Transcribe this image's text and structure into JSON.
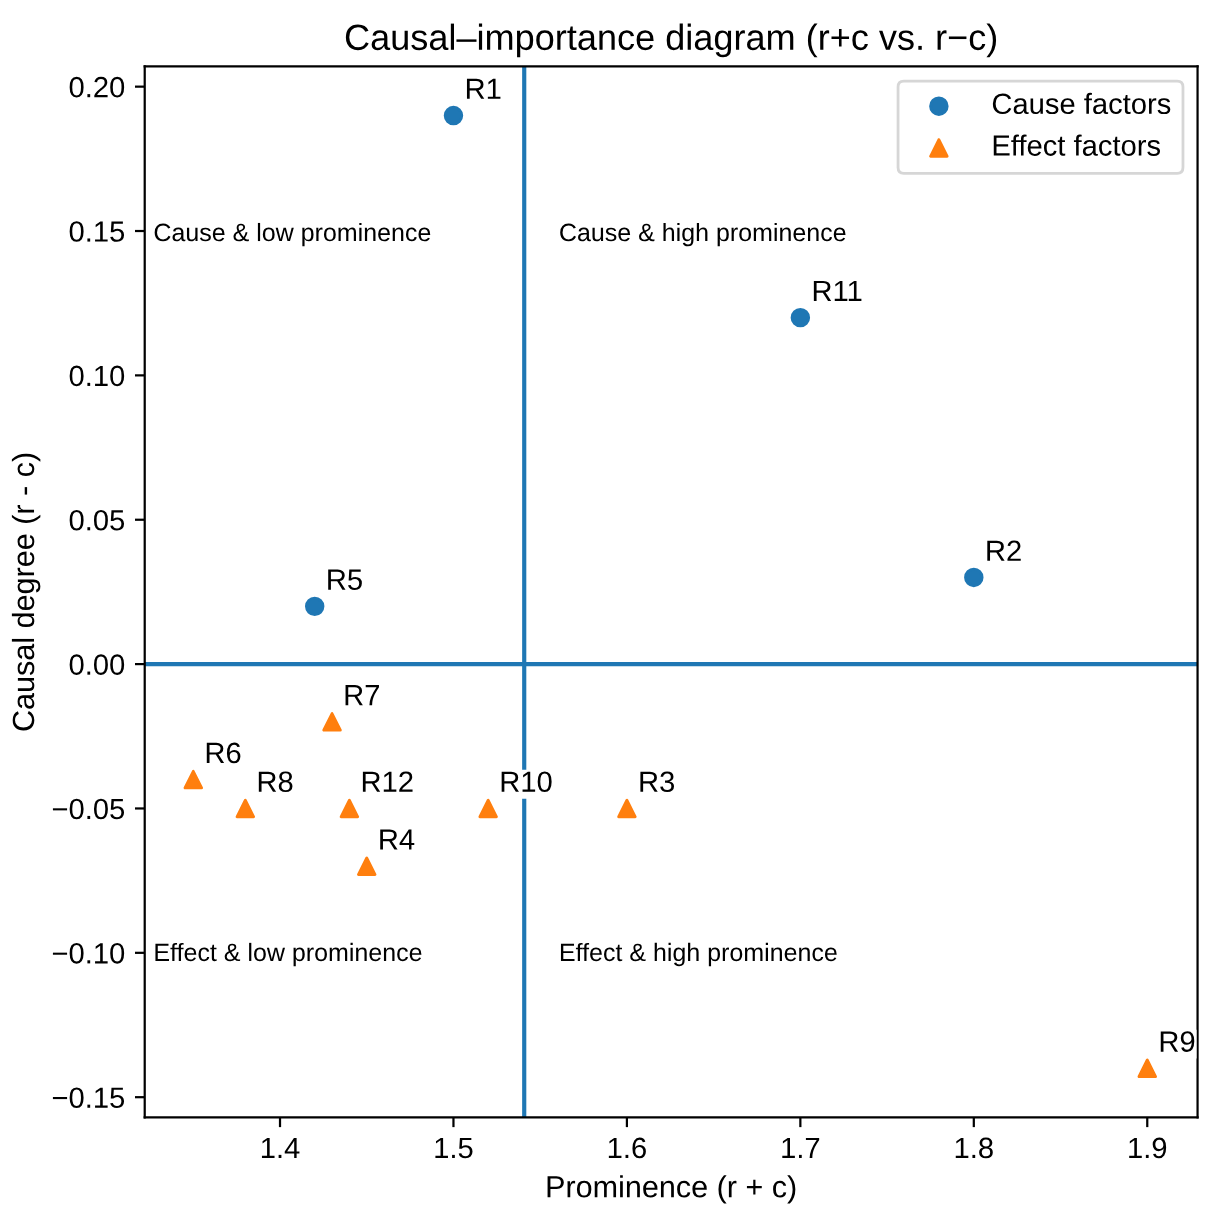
{
  "chart_data": {
    "type": "scatter",
    "title": "Causal–importance diagram (r+c vs. r−c)",
    "xlabel": "Prominence (r + c)",
    "ylabel": "Causal degree (r - c)",
    "series": [
      {
        "name": "Cause factors",
        "color": "#1f77b4",
        "marker": "circle",
        "x": [
          1.5,
          1.7,
          1.8,
          1.42
        ],
        "values": [
          0.19,
          0.12,
          0.03,
          0.02
        ]
      },
      {
        "name": "Effect factors",
        "color": "#ff7f0e",
        "marker": "triangle",
        "x": [
          1.35,
          1.43,
          1.38,
          1.44,
          1.45,
          1.52,
          1.6,
          1.9
        ],
        "values": [
          -0.04,
          -0.02,
          -0.05,
          -0.05,
          -0.07,
          -0.05,
          -0.05,
          -0.14
        ]
      }
    ],
    "annotations": [
      {
        "text": "R1",
        "x": 1.5,
        "y": 0.19
      },
      {
        "text": "R11",
        "x": 1.7,
        "y": 0.12
      },
      {
        "text": "R2",
        "x": 1.8,
        "y": 0.03
      },
      {
        "text": "R5",
        "x": 1.42,
        "y": 0.02
      },
      {
        "text": "R6",
        "x": 1.35,
        "y": -0.04
      },
      {
        "text": "R7",
        "x": 1.43,
        "y": -0.02
      },
      {
        "text": "R8",
        "x": 1.38,
        "y": -0.05
      },
      {
        "text": "R12",
        "x": 1.44,
        "y": -0.05
      },
      {
        "text": "R4",
        "x": 1.45,
        "y": -0.07
      },
      {
        "text": "R10",
        "x": 1.52,
        "y": -0.05
      },
      {
        "text": "R3",
        "x": 1.6,
        "y": -0.05
      },
      {
        "text": "R9",
        "x": 1.9,
        "y": -0.14
      },
      "Cause & low prominence",
      "Cause & high prominence",
      "Effect & low prominence",
      "Effect & high prominence"
    ],
    "ref_lines": [
      {
        "axis": "x",
        "value": 1.5408,
        "color": "#1f77b4"
      },
      {
        "axis": "y",
        "value": 0,
        "color": "#1f77b4"
      }
    ],
    "xlim": [
      1.322,
      1.929
    ],
    "ylim": [
      -0.157,
      0.207
    ],
    "xticks": [
      1.4,
      1.5,
      1.6,
      1.7,
      1.8,
      1.9
    ],
    "yticks": [
      {
        "value": -0.15,
        "label": "−0.15"
      },
      {
        "value": -0.1,
        "label": "−0.10"
      },
      {
        "value": -0.05,
        "label": "−0.05"
      },
      {
        "value": 0,
        "label": "0.00"
      },
      {
        "value": 0.05,
        "label": "0.05"
      },
      {
        "value": 0.1,
        "label": "0.10"
      },
      {
        "value": 0.15,
        "label": "0.15"
      },
      {
        "value": 0.2,
        "label": "0.20"
      }
    ],
    "legend": "top right",
    "grid": false
  }
}
